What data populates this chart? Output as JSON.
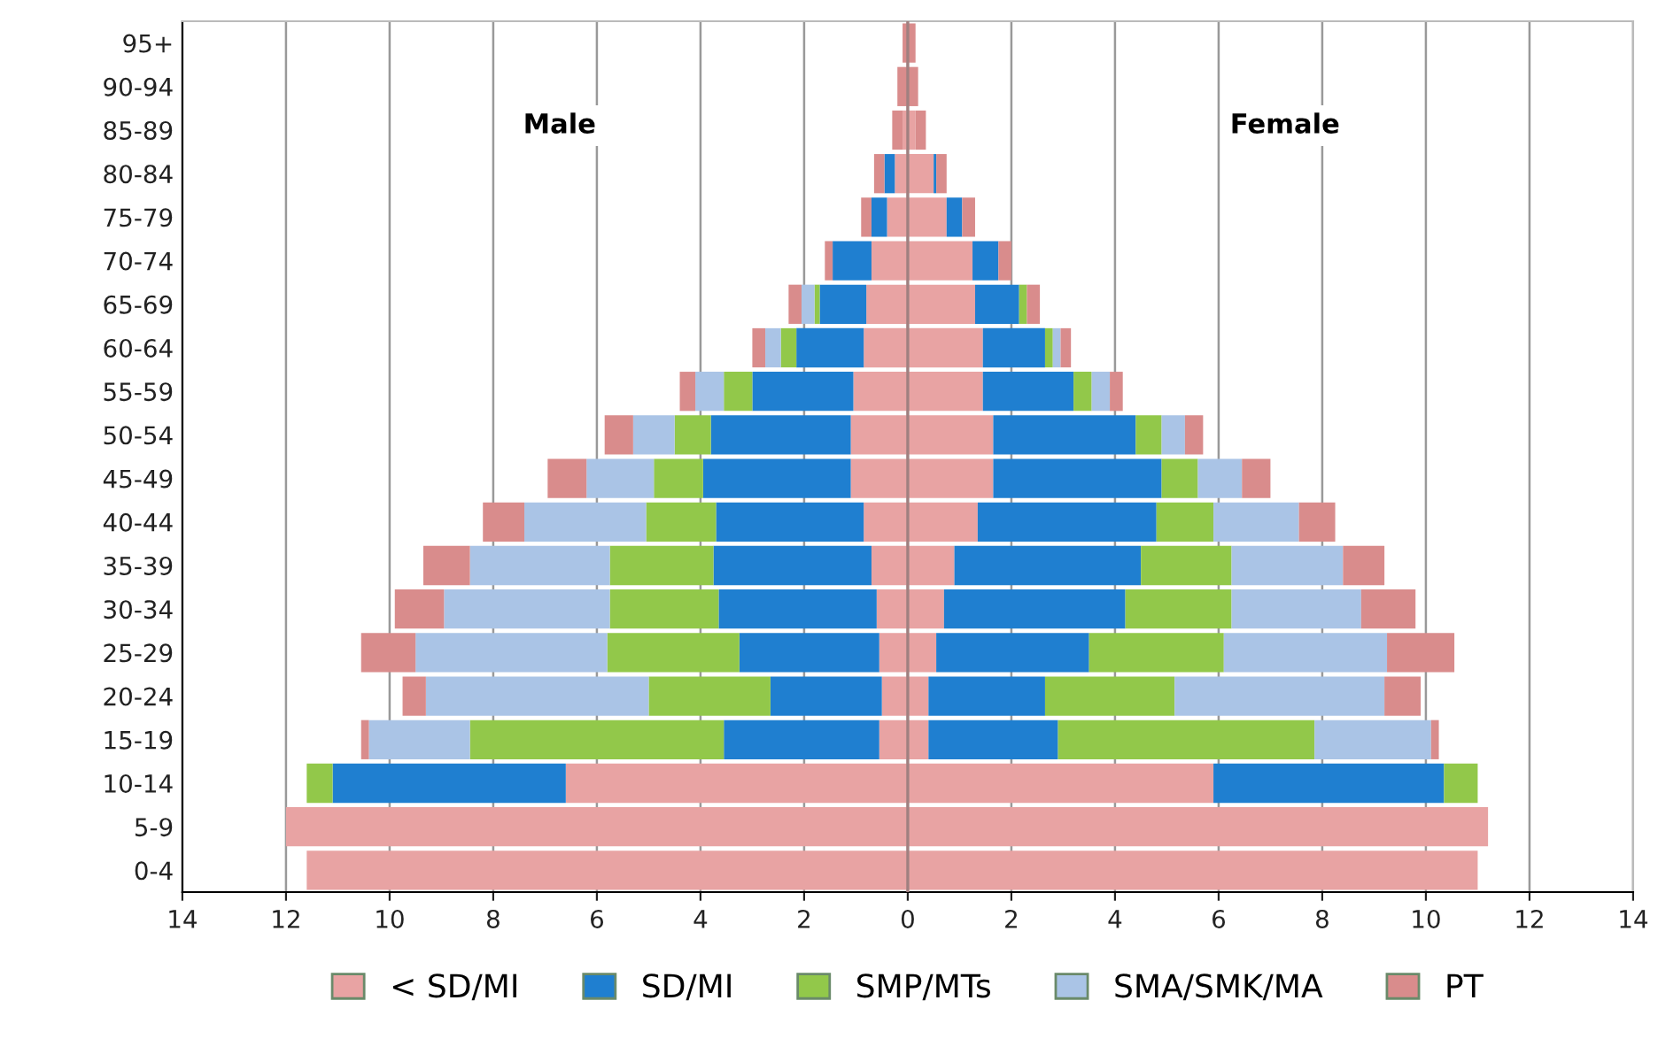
{
  "chart_data": {
    "type": "bar",
    "orientation": "horizontal",
    "stacked": true,
    "categories": [
      "95+",
      "90-94",
      "85-89",
      "80-84",
      "75-79",
      "70-74",
      "65-69",
      "60-64",
      "55-59",
      "50-54",
      "45-49",
      "40-44",
      "35-39",
      "30-34",
      "25-29",
      "20-24",
      "15-19",
      "10-14",
      "5-9",
      "0-4"
    ],
    "series": [
      {
        "color": "#e8a3a3",
        "values": [
          0,
          0,
          -0.1,
          -0.25,
          -0.4,
          -0.7,
          -0.8,
          -0.85,
          -1.05,
          -1.1,
          -1.1,
          -0.85,
          -0.7,
          -0.6,
          -0.55,
          -0.5,
          -0.55,
          -6.6,
          -12.0,
          -11.6
        ]
      },
      {
        "color": "#1f7fd0",
        "values": [
          0,
          0,
          0,
          -0.2,
          -0.3,
          -0.75,
          -0.9,
          -1.3,
          -1.95,
          -2.7,
          -2.85,
          -2.85,
          -3.05,
          -3.05,
          -2.7,
          -2.15,
          -3.0,
          -4.5,
          0,
          0
        ]
      },
      {
        "color": "#92c84a",
        "values": [
          0,
          0,
          0,
          0,
          0,
          0,
          -0.1,
          -0.3,
          -0.55,
          -0.7,
          -0.95,
          -1.35,
          -2.0,
          -2.1,
          -2.55,
          -2.35,
          -4.9,
          -0.5,
          0,
          0
        ]
      },
      {
        "color": "#aac4e6",
        "values": [
          0,
          0,
          0,
          0,
          0,
          0,
          -0.25,
          -0.3,
          -0.55,
          -0.8,
          -1.3,
          -2.35,
          -2.7,
          -3.2,
          -3.7,
          -4.3,
          -1.95,
          0,
          0,
          0
        ]
      },
      {
        "color": "#d98c8c",
        "values": [
          -0.1,
          -0.2,
          -0.2,
          -0.2,
          -0.2,
          -0.15,
          -0.25,
          -0.25,
          -0.3,
          -0.55,
          -0.75,
          -0.8,
          -0.9,
          -0.95,
          -1.05,
          -0.45,
          -0.15,
          0,
          0,
          0
        ]
      },
      {
        "name": "< SD/MI",
        "color": "#e8a3a3",
        "values": [
          0,
          0,
          0.15,
          0.5,
          0.75,
          1.25,
          1.3,
          1.45,
          1.45,
          1.65,
          1.65,
          1.35,
          0.9,
          0.7,
          0.55,
          0.4,
          0.4,
          5.9,
          11.2,
          11.0
        ]
      },
      {
        "name": "SD/MI",
        "color": "#1f7fd0",
        "values": [
          0,
          0,
          0,
          0.05,
          0.3,
          0.5,
          0.85,
          1.2,
          1.75,
          2.75,
          3.25,
          3.45,
          3.6,
          3.5,
          2.95,
          2.25,
          2.5,
          4.45,
          0,
          0
        ]
      },
      {
        "name": "SMP/MTs",
        "color": "#92c84a",
        "values": [
          0,
          0,
          0,
          0,
          0,
          0,
          0.15,
          0.15,
          0.35,
          0.5,
          0.7,
          1.1,
          1.75,
          2.05,
          2.6,
          2.5,
          4.95,
          0.65,
          0,
          0
        ]
      },
      {
        "name": "SMA/SMK/MA",
        "color": "#aac4e6",
        "values": [
          0,
          0,
          0,
          0,
          0,
          0,
          0,
          0.15,
          0.35,
          0.45,
          0.85,
          1.65,
          2.15,
          2.5,
          3.15,
          4.05,
          2.25,
          0,
          0,
          0
        ]
      },
      {
        "name": "PT",
        "color": "#d98c8c",
        "values": [
          0.15,
          0.2,
          0.2,
          0.2,
          0.25,
          0.25,
          0.25,
          0.2,
          0.25,
          0.35,
          0.55,
          0.7,
          0.8,
          1.05,
          1.3,
          0.7,
          0.15,
          0,
          0,
          0
        ]
      }
    ],
    "xlim": [
      -14,
      14
    ],
    "xticks": [
      {
        "value": -14,
        "label": "14"
      },
      {
        "value": -12,
        "label": "12"
      },
      {
        "value": -10,
        "label": "10"
      },
      {
        "value": -8,
        "label": "8"
      },
      {
        "value": -6,
        "label": "6"
      },
      {
        "value": -4,
        "label": "4"
      },
      {
        "value": -2,
        "label": "2"
      },
      0,
      2,
      4,
      6,
      8,
      10,
      12,
      14
    ],
    "annotations": [
      "Male",
      "Female"
    ],
    "grid": "x",
    "legend": "bottom"
  }
}
